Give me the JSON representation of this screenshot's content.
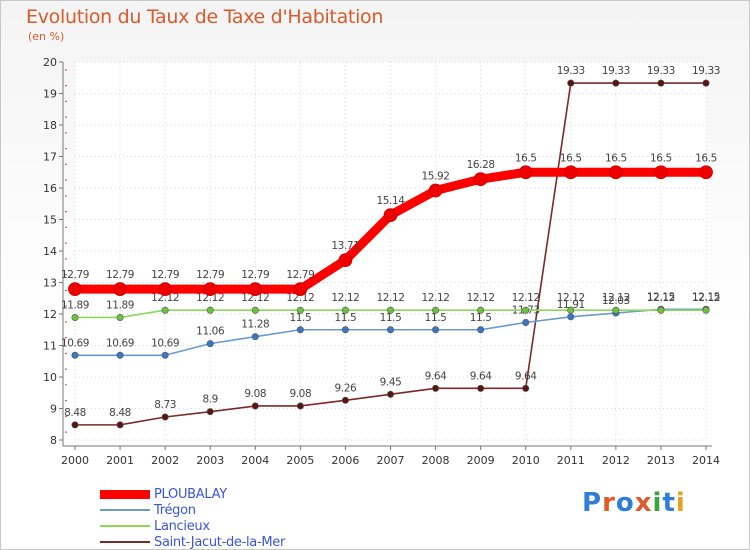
{
  "title": "Evolution du Taux de Taxe d'Habitation",
  "subtitle": "(en %)",
  "logo": {
    "text": "Proxiti",
    "letters": [
      "P",
      "r",
      "o",
      "x",
      "i",
      "t",
      "i"
    ],
    "colors": [
      "#2f7fd8",
      "#e05b2a",
      "#2f7fd8",
      "#e05b2a",
      "#3aa33a",
      "#2f7fd8",
      "#e6a31a"
    ]
  },
  "chart_data": {
    "type": "line",
    "x": [
      "2000",
      "2001",
      "2002",
      "2003",
      "2004",
      "2005",
      "2006",
      "2007",
      "2008",
      "2009",
      "2010",
      "2011",
      "2012",
      "2013",
      "2014"
    ],
    "ylim": [
      8,
      20
    ],
    "yticks": [
      "8",
      "9",
      "10",
      "11",
      "12",
      "13",
      "14",
      "15",
      "16",
      "17",
      "18",
      "19",
      "20"
    ],
    "grid": true,
    "legend": "bottom-left",
    "series": [
      {
        "name": "Saint-Jacut-de-la-Mer",
        "color": "#7a2a2a",
        "marker": "#5a1414",
        "values": [
          8.48,
          8.48,
          8.73,
          8.9,
          9.08,
          9.08,
          9.26,
          9.45,
          9.64,
          9.64,
          9.64,
          19.33,
          19.33,
          19.33,
          19.33
        ],
        "labels": [
          "8.48",
          "8.48",
          "8.73",
          "8.9",
          "9.08",
          "9.08",
          "9.26",
          "9.45",
          "9.64",
          "9.64",
          "9.64",
          "19.33",
          "19.33",
          "19.33",
          "19.33"
        ]
      },
      {
        "name": "Trégon",
        "color": "#6a9ad0",
        "marker": "#3b78c4",
        "values": [
          10.69,
          10.69,
          10.69,
          11.06,
          11.28,
          11.5,
          11.5,
          11.5,
          11.5,
          11.5,
          11.73,
          11.91,
          12.03,
          12.15,
          12.15
        ],
        "labels": [
          "10.69",
          "10.69",
          "10.69",
          "11.06",
          "11.28",
          "11.5",
          "11.5",
          "11.5",
          "11.5",
          "11.5",
          "11.73",
          "11.91",
          "12.03",
          "12.15",
          "12.15"
        ]
      },
      {
        "name": "Lancieux",
        "color": "#8fd65a",
        "marker": "#6cc43a",
        "values": [
          11.89,
          11.89,
          12.12,
          12.12,
          12.12,
          12.12,
          12.12,
          12.12,
          12.12,
          12.12,
          12.12,
          12.12,
          12.12,
          12.12,
          12.12
        ],
        "labels": [
          "11.89",
          "11.89",
          "12.12",
          "12.12",
          "12.12",
          "12.12",
          "12.12",
          "12.12",
          "12.12",
          "12.12",
          "12.12",
          "12.12",
          "12.12",
          "12.12",
          "12.12"
        ]
      },
      {
        "name": "PLOUBALAY",
        "color": "#ff0000",
        "marker": "#ee0000",
        "values": [
          12.79,
          12.79,
          12.79,
          12.79,
          12.79,
          12.79,
          13.71,
          15.14,
          15.92,
          16.28,
          16.5,
          16.5,
          16.5,
          16.5,
          16.5
        ],
        "labels": [
          "12.79",
          "12.79",
          "12.79",
          "12.79",
          "12.79",
          "12.79",
          "13.71",
          "15.14",
          "15.92",
          "16.28",
          "16.5",
          "16.5",
          "16.5",
          "16.5",
          "16.5"
        ]
      }
    ],
    "legend_order": [
      "PLOUBALAY",
      "Trégon",
      "Lancieux",
      "Saint-Jacut-de-la-Mer"
    ]
  }
}
